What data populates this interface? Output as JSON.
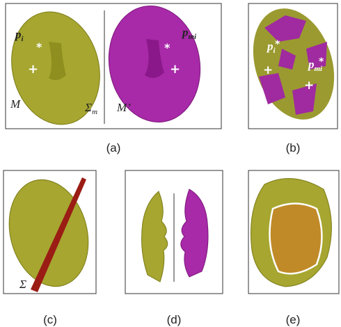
{
  "panel_a": {
    "caption": "(a)",
    "p_i": {
      "base": "p",
      "sub": "i"
    },
    "m": "M",
    "sigma_m": {
      "base": "Σ",
      "sub": "m"
    },
    "m_prime": "M’",
    "p_mi": {
      "base": "p",
      "sub": "mi"
    }
  },
  "panel_b": {
    "caption": "(b)",
    "p_i": {
      "base": "p",
      "sub": "i"
    },
    "p_mi": {
      "base": "p",
      "sub": "mi"
    }
  },
  "panel_c": {
    "caption": "(c)",
    "sigma": "Σ"
  },
  "panel_d": {
    "caption": "(d)"
  },
  "panel_e": {
    "caption": "(e)"
  }
}
